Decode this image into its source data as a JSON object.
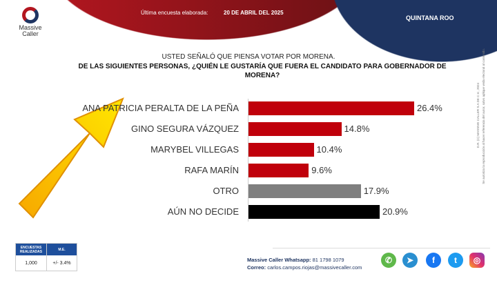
{
  "header": {
    "survey_label": "Última encuesta elaborada:",
    "survey_date": "20 DE ABRIL DEL 2025",
    "state": "QUINTANA ROO",
    "logo": "Massive Caller"
  },
  "chart_data": {
    "type": "bar",
    "orientation": "horizontal",
    "title": "USTED SEÑALÓ QUE PIENSA VOTAR POR MORENA.",
    "subtitle": "DE LAS SIGUIENTES PERSONAS, ¿QUIÉN LE GUSTARÍA QUE FUERA EL CANDIDATO PARA GOBERNADOR DE MORENA?",
    "categories": [
      "ANA PATRICIA PERALTA DE LA PEÑA",
      "GINO SEGURA VÁZQUEZ",
      "MARYBEL VILLEGAS",
      "RAFA MARÍN",
      "OTRO",
      "AÚN NO DECIDE"
    ],
    "values": [
      26.4,
      14.8,
      10.4,
      9.6,
      17.9,
      20.9
    ],
    "labels": [
      "26.4%",
      "14.8%",
      "10.4%",
      "9.6%",
      "17.9%",
      "20.9%"
    ],
    "colors": [
      "#c0000b",
      "#c0000b",
      "#c0000b",
      "#c0000b",
      "#7f7f7f",
      "#000000"
    ]
  },
  "legal": {
    "copyright": "D.R. (C) MASSIVE CALLER S.A DE C.V., 2024",
    "notice": "Se autoriza la reproducción al hacer referencia del autor, salvo aplique veda electoral al contenido."
  },
  "stats": {
    "h1": "ENCUESTAS REALIZADAS",
    "h2": "M.E.",
    "v1": "1,000",
    "v2": "+/- 3.4%"
  },
  "footer": {
    "wa_label": "Massive Caller Whatsapp:",
    "wa": "81 1798 1079",
    "mail_label": "Correo:",
    "mail": "carlos.campos.riojas@massivecaller.com"
  }
}
